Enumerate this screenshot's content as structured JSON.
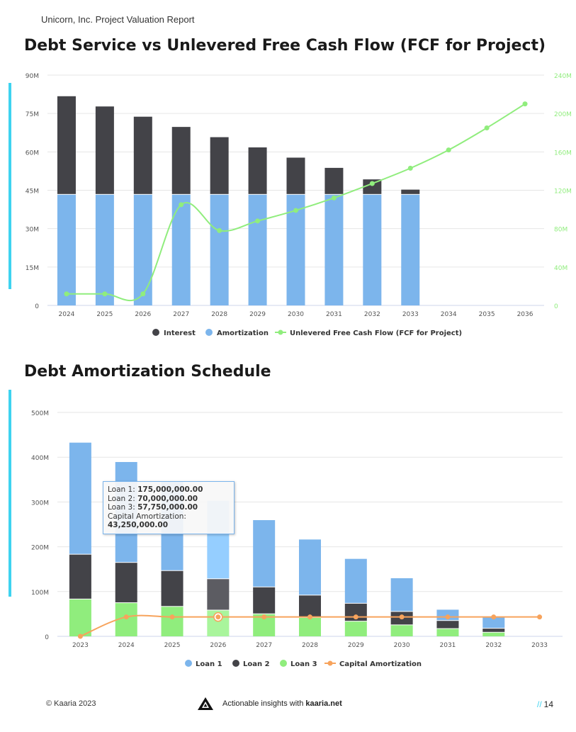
{
  "header": {
    "text": "Unicorn, Inc.  Project Valuation Report"
  },
  "chart1_title": "Debt Service  vs Unlevered Free Cash Flow (FCF for Project)",
  "chart2_title": "Debt Amortization Schedule",
  "footer": {
    "copyright": "© Kaaria 2023",
    "tagline": "Actionable insights with",
    "site": "kaaria.net",
    "page_marker": "//",
    "page": "14"
  },
  "tooltip": {
    "rows": [
      {
        "label": "Loan 1: ",
        "value": "175,000,000.00"
      },
      {
        "label": "Loan 2: ",
        "value": "70,000,000.00"
      },
      {
        "label": "Loan 3: ",
        "value": "57,750,000.00"
      },
      {
        "label": "Capital Amortization: ",
        "value": "43,250,000.00"
      }
    ]
  },
  "colors": {
    "interest": "#434348",
    "amortization": "#7cb5ec",
    "fcf": "#90ed7d",
    "loan1": "#7cb5ec",
    "loan2": "#434348",
    "loan3": "#90ed7d",
    "capital": "#f7a35c",
    "accent": "#3ed3f0"
  },
  "chart_data": [
    {
      "type": "bar",
      "stacked": true,
      "categories": [
        "2024",
        "2025",
        "2026",
        "2027",
        "2028",
        "2029",
        "2030",
        "2031",
        "2032",
        "2033",
        "2034",
        "2035",
        "2036"
      ],
      "series": [
        {
          "name": "Interest",
          "axis": "left",
          "values": [
            38.5,
            34.5,
            30.5,
            26.5,
            22.5,
            18.5,
            14.5,
            10.5,
            6.0,
            2.0,
            null,
            null,
            null
          ]
        },
        {
          "name": "Amortization",
          "axis": "left",
          "values": [
            43.25,
            43.25,
            43.25,
            43.25,
            43.25,
            43.25,
            43.25,
            43.25,
            43.25,
            43.25,
            null,
            null,
            null
          ]
        },
        {
          "name": "Unlevered Free Cash Flow (FCF for Project)",
          "type": "line",
          "axis": "right",
          "values": [
            12,
            12,
            12,
            105,
            78,
            88,
            99,
            112,
            127,
            143,
            162,
            185,
            210
          ]
        }
      ],
      "ylim": [
        0,
        90
      ],
      "yticks": [
        "0",
        "15M",
        "30M",
        "45M",
        "60M",
        "75M",
        "90M"
      ],
      "y2lim": [
        0,
        240
      ],
      "y2ticks": [
        "0",
        "40M",
        "80M",
        "120M",
        "160M",
        "200M",
        "240M"
      ],
      "legend": "bottom",
      "grid": true
    },
    {
      "type": "bar",
      "stacked": true,
      "categories": [
        "2023",
        "2024",
        "2025",
        "2026",
        "2027",
        "2028",
        "2029",
        "2030",
        "2031",
        "2032",
        "2033"
      ],
      "series": [
        {
          "name": "Loan 1",
          "values": [
            250,
            225,
            200,
            175,
            150,
            125,
            100,
            75,
            25,
            25,
            null
          ]
        },
        {
          "name": "Loan 2",
          "values": [
            100,
            90,
            80,
            70,
            60,
            50,
            40,
            30,
            18,
            9,
            null
          ]
        },
        {
          "name": "Loan 3",
          "values": [
            82.5,
            74.25,
            66,
            57.75,
            49.5,
            41.25,
            33,
            24.75,
            16.5,
            8.25,
            null
          ]
        },
        {
          "name": "Capital Amortization",
          "type": "line",
          "values": [
            0,
            43.25,
            43.25,
            43.25,
            43.25,
            43.25,
            43.25,
            43.25,
            43.25,
            43.25,
            43.25
          ]
        }
      ],
      "ylim": [
        0,
        500
      ],
      "yticks": [
        "0",
        "100M",
        "200M",
        "300M",
        "400M",
        "500M"
      ],
      "highlight_category": "2026",
      "legend": "bottom",
      "grid": true
    }
  ]
}
